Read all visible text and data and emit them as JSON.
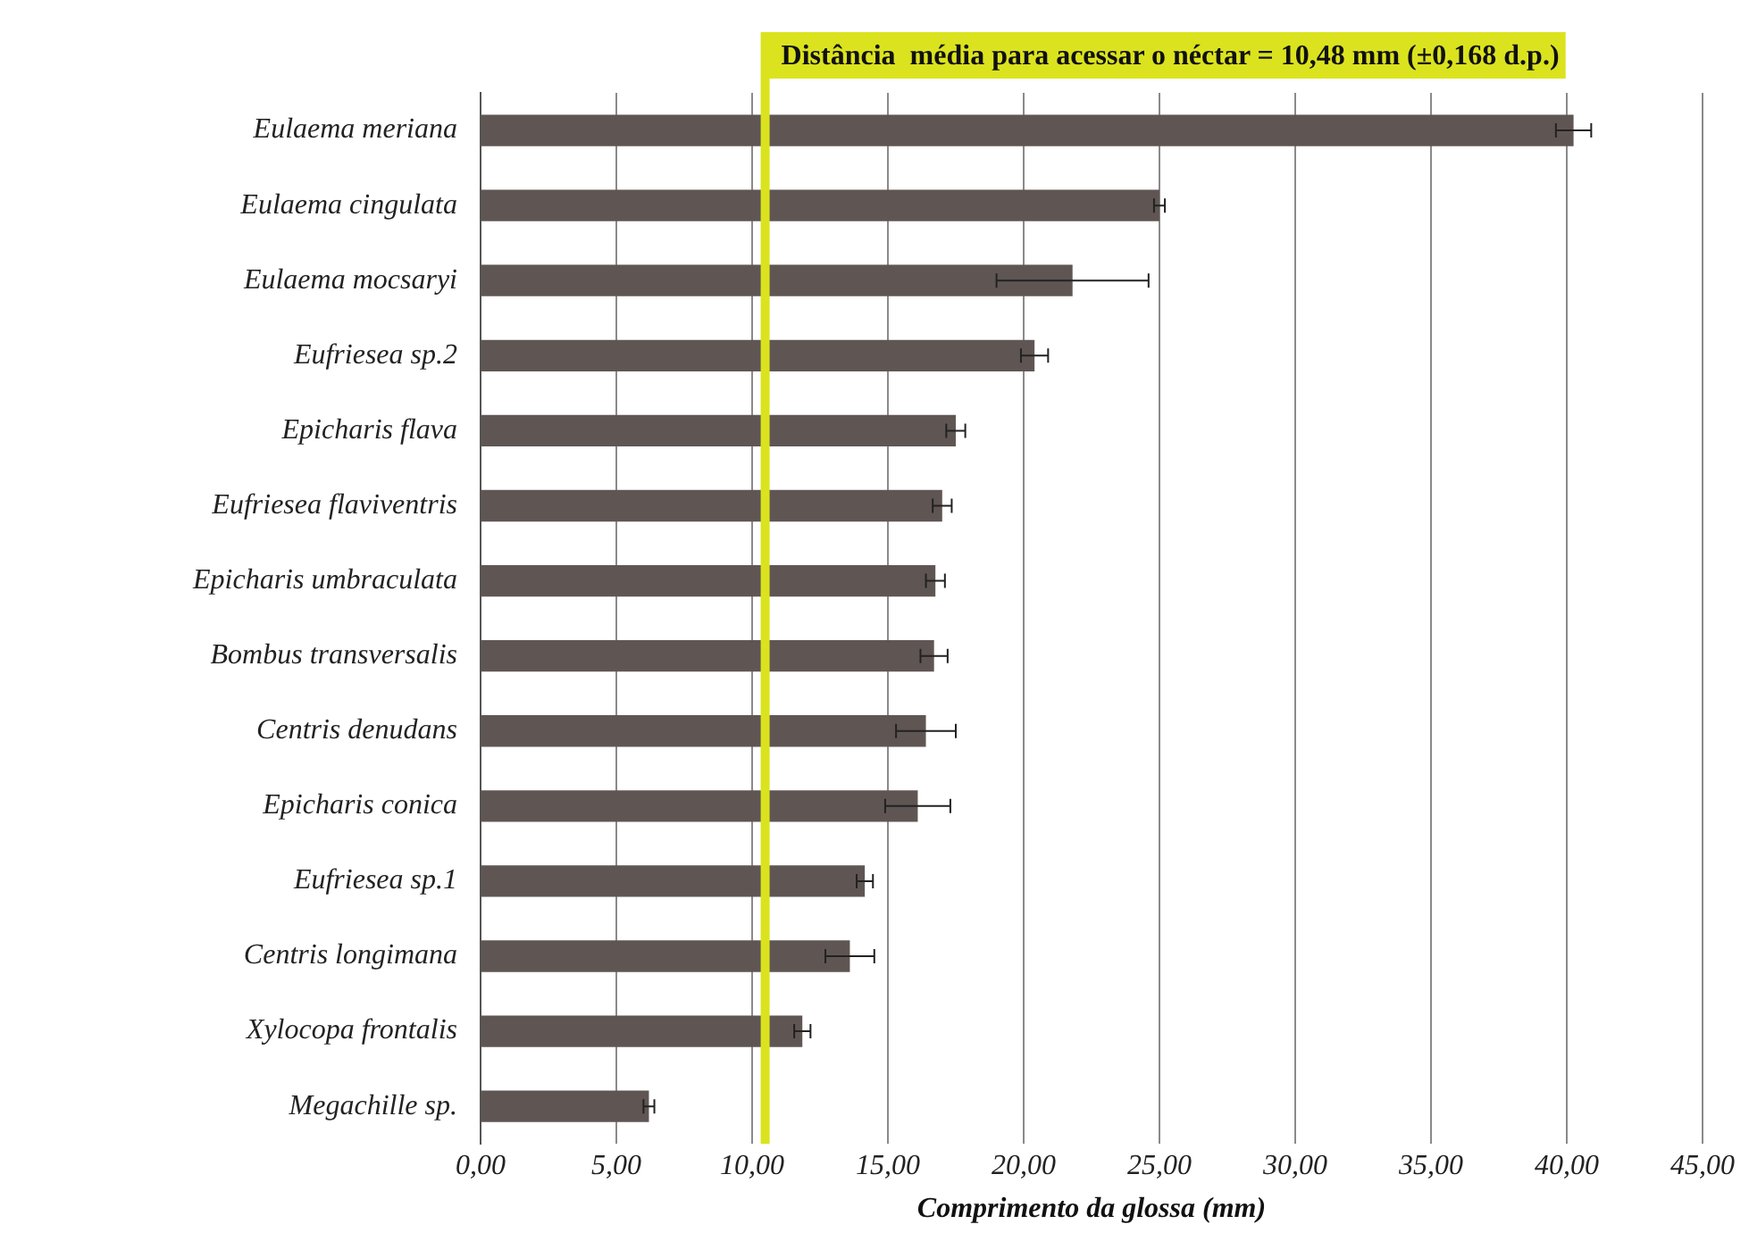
{
  "chart_data": {
    "type": "bar",
    "orientation": "horizontal",
    "xlabel": "Comprimento da glossa (mm)",
    "categories": [
      "Eulaema meriana",
      "Eulaema cingulata",
      "Eulaema mocsaryi",
      "Eufriesea sp.2",
      "Epicharis flava",
      "Eufriesea flaviventris",
      "Epicharis umbraculata",
      "Bombus transversalis",
      "Centris denudans",
      "Epicharis conica",
      "Eufriesea sp.1",
      "Centris longimana",
      "Xylocopa frontalis",
      "Megachille sp."
    ],
    "values": [
      40.25,
      25.0,
      21.8,
      20.4,
      17.5,
      17.0,
      16.75,
      16.7,
      16.4,
      16.1,
      14.15,
      13.6,
      11.85,
      6.2
    ],
    "errors": [
      0.65,
      0.2,
      2.8,
      0.5,
      0.35,
      0.35,
      0.35,
      0.5,
      1.1,
      1.2,
      0.3,
      0.9,
      0.3,
      0.2
    ],
    "color": "#5f5654",
    "xlim": [
      0,
      45
    ],
    "xticks": [
      {
        "value": 0,
        "label": "0,00"
      },
      {
        "value": 5,
        "label": "5,00"
      },
      {
        "value": 10,
        "label": "10,00"
      },
      {
        "value": 15,
        "label": "15,00"
      },
      {
        "value": 20,
        "label": "20,00"
      },
      {
        "value": 25,
        "label": "25,00"
      },
      {
        "value": 30,
        "label": "30,00"
      },
      {
        "value": 35,
        "label": "35,00"
      },
      {
        "value": 40,
        "label": "40,00"
      },
      {
        "value": 45,
        "label": "45,00"
      }
    ],
    "ref_lines": [
      {
        "axis": "x",
        "value": 10.48,
        "label": "Distância  média para acessar o néctar = 10,48 mm (±0,168 d.p.)",
        "color": "#dbe31e"
      }
    ],
    "grid": "x",
    "legend": false
  }
}
